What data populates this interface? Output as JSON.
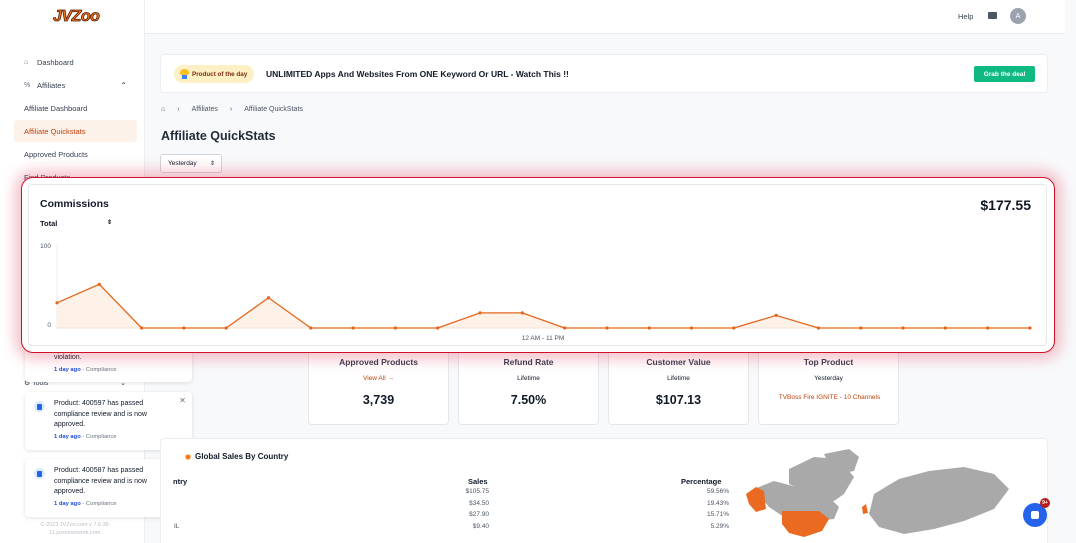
{
  "app": {
    "logo": "JVZoo"
  },
  "sidebar": {
    "items": [
      {
        "label": "Dashboard",
        "icon": "home-icon"
      },
      {
        "label": "Affiliates",
        "icon": "percent-icon",
        "expanded": true
      },
      {
        "label": "Affiliate Dashboard"
      },
      {
        "label": "Affiliate Quickstats",
        "active": true
      },
      {
        "label": "Approved Products"
      },
      {
        "label": "Find Products"
      }
    ],
    "tools": "Tools",
    "footer": "© 2023 JVZoo.com v 7.6.36-11.jvzoonetwork.com."
  },
  "topbar": {
    "help": "Help",
    "avatar": "A"
  },
  "promo": {
    "badge": "Product of the day",
    "text": "UNLIMITED Apps And Websites From ONE Keyword Or URL - Watch This !!",
    "button": "Grab the deal"
  },
  "breadcrumb": {
    "items": [
      "Affiliates",
      "Affiliate QuickStats"
    ]
  },
  "page": {
    "title": "Affiliate QuickStats",
    "period": "Yesterday"
  },
  "commissions": {
    "title": "Commissions",
    "total": "$177.55",
    "select": "Total",
    "accent": "#e4661b"
  },
  "chart_data": {
    "type": "area",
    "title": "Commissions",
    "xlabel": "12 AM - 11 PM",
    "ylabel": "",
    "ylim": [
      0,
      100
    ],
    "yticks": [
      "100",
      "0"
    ],
    "x": [
      0,
      1,
      2,
      3,
      4,
      5,
      6,
      7,
      8,
      9,
      10,
      11,
      12,
      13,
      14,
      15,
      16,
      17,
      18,
      19,
      20,
      21,
      22,
      23
    ],
    "values": [
      30,
      52,
      0,
      0,
      0,
      36,
      0,
      0,
      0,
      0,
      18,
      18,
      0,
      0,
      0,
      0,
      0,
      15,
      0,
      0,
      0,
      0,
      0,
      0
    ],
    "grid": false
  },
  "notifications": [
    {
      "message": "violation.",
      "time": "1 day ago",
      "category": "- Compliance"
    },
    {
      "message": "Product: 400597 has passed compliance review and is now approved.",
      "time": "1 day ago",
      "category": "- Compliance"
    },
    {
      "message": "Product: 400587 has passed compliance review and is now approved.",
      "time": "1 day ago",
      "category": "- Compliance"
    }
  ],
  "stats": [
    {
      "title": "Approved Products",
      "sub": "View All →",
      "value": "3,739"
    },
    {
      "title": "Refund Rate",
      "sub": "Lifetime",
      "value": "7.50%"
    },
    {
      "title": "Customer Value",
      "sub": "Lifetime",
      "value": "$107.13"
    },
    {
      "title": "Top Product",
      "sub": "Yesterday",
      "value": "TVBoss Fire IGNITE - 10 Channels"
    }
  ],
  "geo": {
    "title": "Global Sales By Country",
    "headers": [
      "ntry",
      "Sales",
      "Percentage"
    ],
    "rows": [
      {
        "country": "",
        "sales": "$105.75",
        "pct": "59.56%"
      },
      {
        "country": "",
        "sales": "$34.50",
        "pct": "19.43%"
      },
      {
        "country": "",
        "sales": "$27.90",
        "pct": "15.71%"
      },
      {
        "country": "IL",
        "sales": "$9.40",
        "pct": "5.29%"
      }
    ]
  },
  "bell": {
    "badge": "9+"
  }
}
